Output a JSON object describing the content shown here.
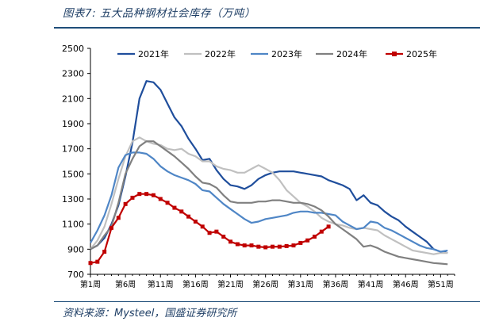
{
  "header": {
    "title": "图表7: 五大品种钢材社会库存（万吨）"
  },
  "footer": {
    "source": "资料来源：Mysteel，国盛证券研究所"
  },
  "chart_data": {
    "type": "line",
    "title": "五大品种钢材社会库存（万吨）",
    "xlabel": "",
    "ylabel": "",
    "ylim": [
      700,
      2500
    ],
    "yticks": [
      700,
      900,
      1100,
      1300,
      1500,
      1700,
      1900,
      2100,
      2300,
      2500
    ],
    "xlim": [
      1,
      53
    ],
    "xticks": [
      1,
      6,
      11,
      16,
      21,
      26,
      31,
      36,
      41,
      46,
      51
    ],
    "xtick_labels": [
      "第1周",
      "第6周",
      "第11周",
      "第16周",
      "第21周",
      "第26周",
      "第31周",
      "第36周",
      "第41周",
      "第46周",
      "第51周"
    ],
    "legend_position": "top",
    "series": [
      {
        "name": "2021年",
        "color": "#1f4e9c",
        "marker": "none",
        "x": [
          1,
          2,
          3,
          4,
          5,
          6,
          7,
          8,
          9,
          10,
          11,
          12,
          13,
          14,
          15,
          16,
          17,
          18,
          19,
          20,
          21,
          22,
          23,
          24,
          25,
          26,
          27,
          28,
          29,
          30,
          31,
          32,
          33,
          34,
          35,
          36,
          37,
          38,
          39,
          40,
          41,
          42,
          43,
          44,
          45,
          46,
          47,
          48,
          49,
          50,
          51,
          52
        ],
        "values": [
          900,
          930,
          990,
          1100,
          1250,
          1480,
          1750,
          2100,
          2240,
          2230,
          2170,
          2060,
          1950,
          1880,
          1780,
          1700,
          1610,
          1620,
          1530,
          1460,
          1410,
          1400,
          1380,
          1410,
          1460,
          1490,
          1510,
          1520,
          1520,
          1520,
          1510,
          1500,
          1490,
          1480,
          1450,
          1430,
          1410,
          1380,
          1290,
          1330,
          1270,
          1250,
          1200,
          1160,
          1130,
          1080,
          1040,
          1000,
          960,
          900,
          880,
          870
        ]
      },
      {
        "name": "2022年",
        "color": "#c0c0c0",
        "marker": "none",
        "x": [
          1,
          2,
          3,
          4,
          5,
          6,
          7,
          8,
          9,
          10,
          11,
          12,
          13,
          14,
          15,
          16,
          17,
          18,
          19,
          20,
          21,
          22,
          23,
          24,
          25,
          26,
          27,
          28,
          29,
          30,
          31,
          32,
          33,
          34,
          35,
          36,
          37,
          38,
          39,
          40,
          41,
          42,
          43,
          44,
          45,
          46,
          47,
          48,
          49,
          50,
          51,
          52
        ],
        "values": [
          900,
          970,
          1080,
          1260,
          1460,
          1640,
          1760,
          1790,
          1760,
          1740,
          1730,
          1700,
          1690,
          1700,
          1660,
          1640,
          1600,
          1600,
          1560,
          1540,
          1530,
          1510,
          1510,
          1540,
          1570,
          1540,
          1510,
          1450,
          1370,
          1320,
          1270,
          1240,
          1200,
          1150,
          1120,
          1100,
          1090,
          1070,
          1060,
          1070,
          1060,
          1050,
          1010,
          980,
          950,
          920,
          890,
          880,
          870,
          860,
          870,
          870
        ]
      },
      {
        "name": "2023年",
        "color": "#4f86c6",
        "marker": "none",
        "x": [
          1,
          2,
          3,
          4,
          5,
          6,
          7,
          8,
          9,
          10,
          11,
          12,
          13,
          14,
          15,
          16,
          17,
          18,
          19,
          20,
          21,
          22,
          23,
          24,
          25,
          26,
          27,
          28,
          29,
          30,
          31,
          32,
          33,
          34,
          35,
          36,
          37,
          38,
          39,
          40,
          41,
          42,
          43,
          44,
          45,
          46,
          47,
          48,
          49,
          50,
          51,
          52
        ],
        "values": [
          950,
          1050,
          1170,
          1330,
          1550,
          1650,
          1670,
          1670,
          1660,
          1620,
          1560,
          1520,
          1490,
          1470,
          1450,
          1420,
          1370,
          1360,
          1310,
          1260,
          1220,
          1180,
          1140,
          1110,
          1120,
          1140,
          1150,
          1160,
          1170,
          1190,
          1200,
          1200,
          1190,
          1190,
          1180,
          1170,
          1120,
          1090,
          1060,
          1070,
          1120,
          1110,
          1070,
          1050,
          1020,
          990,
          960,
          930,
          910,
          900,
          880,
          890
        ]
      },
      {
        "name": "2024年",
        "color": "#808080",
        "marker": "none",
        "x": [
          1,
          2,
          3,
          4,
          5,
          6,
          7,
          8,
          9,
          10,
          11,
          12,
          13,
          14,
          15,
          16,
          17,
          18,
          19,
          20,
          21,
          22,
          23,
          24,
          25,
          26,
          27,
          28,
          29,
          30,
          31,
          32,
          33,
          34,
          35,
          36,
          37,
          38,
          39,
          40,
          41,
          42,
          43,
          44,
          45,
          46,
          47,
          48,
          49,
          50,
          51,
          52
        ],
        "values": [
          900,
          930,
          1010,
          1080,
          1270,
          1500,
          1620,
          1720,
          1760,
          1760,
          1720,
          1680,
          1640,
          1590,
          1540,
          1480,
          1430,
          1420,
          1390,
          1330,
          1280,
          1270,
          1270,
          1270,
          1280,
          1280,
          1290,
          1290,
          1280,
          1270,
          1270,
          1260,
          1240,
          1210,
          1160,
          1100,
          1060,
          1020,
          980,
          920,
          930,
          910,
          880,
          860,
          840,
          830,
          820,
          810,
          800,
          790,
          785,
          780
        ]
      },
      {
        "name": "2025年",
        "color": "#c00000",
        "marker": "square",
        "x": [
          1,
          2,
          3,
          4,
          5,
          6,
          7,
          8,
          9,
          10,
          11,
          12,
          13,
          14,
          15,
          16,
          17,
          18,
          19,
          20,
          21,
          22,
          23,
          24,
          25,
          26,
          27,
          28,
          29,
          30,
          31,
          32,
          33,
          34,
          35
        ],
        "values": [
          790,
          800,
          880,
          1070,
          1150,
          1260,
          1310,
          1340,
          1340,
          1330,
          1300,
          1270,
          1230,
          1200,
          1160,
          1120,
          1080,
          1030,
          1040,
          1000,
          960,
          940,
          930,
          930,
          920,
          915,
          920,
          920,
          925,
          930,
          950,
          970,
          1000,
          1040,
          1080
        ]
      }
    ]
  }
}
